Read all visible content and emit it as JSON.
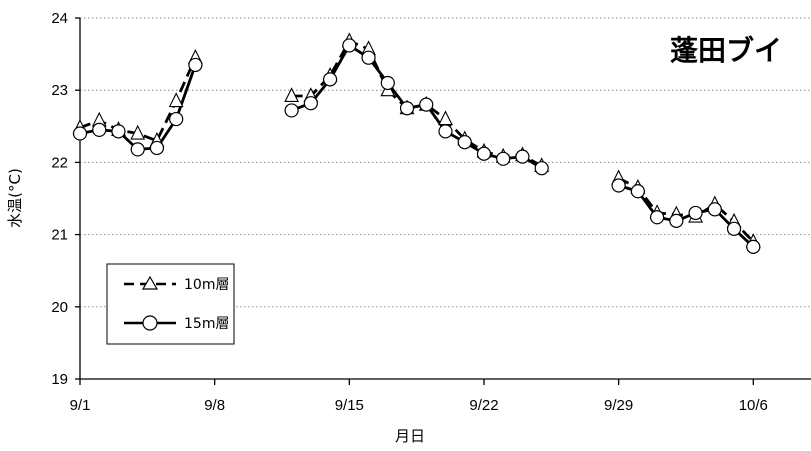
{
  "chart_data": {
    "type": "line",
    "title": "蓬田ブイ",
    "xlabel": "月日",
    "ylabel": "水温(°C)",
    "ylim": [
      19,
      24
    ],
    "yticks": [
      "19",
      "20",
      "21",
      "22",
      "23",
      "24"
    ],
    "xlim": [
      "2023-09-01",
      "2023-10-09"
    ],
    "xticks": [
      {
        "date": "2023-09-01",
        "label": "9/1"
      },
      {
        "date": "2023-09-08",
        "label": "9/8"
      },
      {
        "date": "2023-09-15",
        "label": "9/15"
      },
      {
        "date": "2023-09-22",
        "label": "9/22"
      },
      {
        "date": "2023-09-29",
        "label": "9/29"
      },
      {
        "date": "2023-10-06",
        "label": "10/6"
      }
    ],
    "grid": "horizontal dotted",
    "legend_position": "bottom-left",
    "series": [
      {
        "name": "10m層",
        "style": "dashed",
        "marker": "triangle",
        "color": "#000000",
        "segments": [
          [
            [
              "2023-09-01",
              22.48
            ],
            [
              "2023-09-02",
              22.58
            ],
            [
              "2023-09-03",
              22.45
            ],
            [
              "2023-09-04",
              22.4
            ],
            [
              "2023-09-05",
              22.3
            ],
            [
              "2023-09-06",
              22.85
            ],
            [
              "2023-09-07",
              23.45
            ]
          ],
          [
            [
              "2023-09-12",
              22.92
            ],
            [
              "2023-09-13",
              22.92
            ],
            [
              "2023-09-14",
              23.2
            ],
            [
              "2023-09-15",
              23.68
            ],
            [
              "2023-09-16",
              23.57
            ],
            [
              "2023-09-17",
              23.0
            ],
            [
              "2023-09-18",
              22.75
            ],
            [
              "2023-09-19",
              22.8
            ],
            [
              "2023-09-20",
              22.6
            ],
            [
              "2023-09-21",
              22.32
            ],
            [
              "2023-09-22",
              22.15
            ],
            [
              "2023-09-23",
              22.08
            ],
            [
              "2023-09-24",
              22.1
            ],
            [
              "2023-09-25",
              21.95
            ]
          ],
          [
            [
              "2023-09-29",
              21.78
            ],
            [
              "2023-09-30",
              21.65
            ],
            [
              "2023-10-01",
              21.3
            ],
            [
              "2023-10-02",
              21.28
            ],
            [
              "2023-10-03",
              21.25
            ],
            [
              "2023-10-04",
              21.42
            ],
            [
              "2023-10-05",
              21.18
            ],
            [
              "2023-10-06",
              20.9
            ]
          ]
        ]
      },
      {
        "name": "15m層",
        "style": "solid",
        "marker": "circle",
        "color": "#000000",
        "segments": [
          [
            [
              "2023-09-01",
              22.4
            ],
            [
              "2023-09-02",
              22.45
            ],
            [
              "2023-09-03",
              22.43
            ],
            [
              "2023-09-04",
              22.18
            ],
            [
              "2023-09-05",
              22.2
            ],
            [
              "2023-09-06",
              22.6
            ],
            [
              "2023-09-07",
              23.35
            ]
          ],
          [
            [
              "2023-09-12",
              22.72
            ],
            [
              "2023-09-13",
              22.82
            ],
            [
              "2023-09-14",
              23.15
            ],
            [
              "2023-09-15",
              23.62
            ],
            [
              "2023-09-16",
              23.45
            ],
            [
              "2023-09-17",
              23.1
            ],
            [
              "2023-09-18",
              22.75
            ],
            [
              "2023-09-19",
              22.8
            ],
            [
              "2023-09-20",
              22.43
            ],
            [
              "2023-09-21",
              22.28
            ],
            [
              "2023-09-22",
              22.12
            ],
            [
              "2023-09-23",
              22.05
            ],
            [
              "2023-09-24",
              22.08
            ],
            [
              "2023-09-25",
              21.92
            ]
          ],
          [
            [
              "2023-09-29",
              21.68
            ],
            [
              "2023-09-30",
              21.6
            ],
            [
              "2023-10-01",
              21.24
            ],
            [
              "2023-10-02",
              21.19
            ],
            [
              "2023-10-03",
              21.3
            ],
            [
              "2023-10-04",
              21.35
            ],
            [
              "2023-10-05",
              21.08
            ],
            [
              "2023-10-06",
              20.83
            ]
          ]
        ]
      }
    ]
  }
}
